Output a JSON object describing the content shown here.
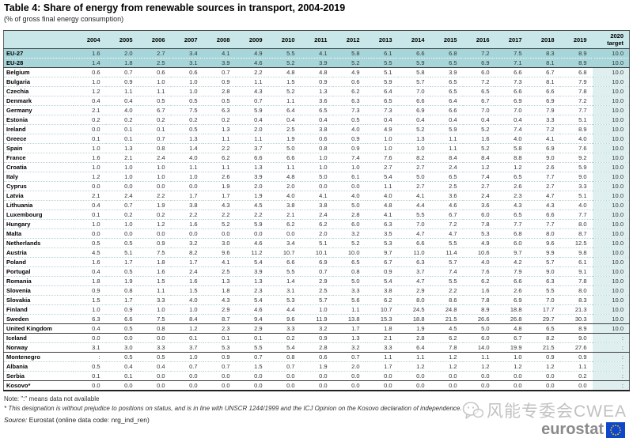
{
  "title": "Table 4: Share of energy from renewable sources in transport, 2004-2019",
  "subtitle": "(% of gross final energy consumption)",
  "chart_data": {
    "type": "table",
    "title": "Table 4: Share of energy from renewable sources in transport, 2004-2019",
    "unit": "% of gross final energy consumption",
    "na_symbol": ":",
    "columns": [
      "2004",
      "2005",
      "2006",
      "2007",
      "2008",
      "2009",
      "2010",
      "2011",
      "2012",
      "2013",
      "2014",
      "2015",
      "2016",
      "2017",
      "2018",
      "2019"
    ],
    "target_header_lines": [
      "2020",
      "target"
    ],
    "rows": [
      {
        "name": "EU-27",
        "group": "eu",
        "values": [
          "1.6",
          "2.0",
          "2.7",
          "3.4",
          "4.1",
          "4.9",
          "5.5",
          "4.1",
          "5.8",
          "6.1",
          "6.6",
          "6.8",
          "7.2",
          "7.5",
          "8.3",
          "8.9"
        ],
        "target": "10.0"
      },
      {
        "name": "EU-28",
        "group": "eu",
        "values": [
          "1.4",
          "1.8",
          "2.5",
          "3.1",
          "3.9",
          "4.6",
          "5.2",
          "3.9",
          "5.2",
          "5.5",
          "5.9",
          "6.5",
          "6.9",
          "7.1",
          "8.1",
          "8.9"
        ],
        "target": "10.0"
      },
      {
        "name": "Belgium",
        "group": "member",
        "values": [
          "0.6",
          "0.7",
          "0.6",
          "0.6",
          "0.7",
          "2.2",
          "4.8",
          "4.8",
          "4.9",
          "5.1",
          "5.8",
          "3.9",
          "6.0",
          "6.6",
          "6.7",
          "6.8"
        ],
        "target": "10.0"
      },
      {
        "name": "Bulgaria",
        "group": "member",
        "values": [
          "1.0",
          "0.9",
          "1.0",
          "1.0",
          "0.9",
          "1.1",
          "1.5",
          "0.9",
          "0.6",
          "5.9",
          "5.7",
          "6.5",
          "7.2",
          "7.3",
          "8.1",
          "7.9"
        ],
        "target": "10.0"
      },
      {
        "name": "Czechia",
        "group": "member",
        "values": [
          "1.2",
          "1.1",
          "1.1",
          "1.0",
          "2.8",
          "4.3",
          "5.2",
          "1.3",
          "6.2",
          "6.4",
          "7.0",
          "6.5",
          "6.5",
          "6.6",
          "6.6",
          "7.8"
        ],
        "target": "10.0"
      },
      {
        "name": "Denmark",
        "group": "member",
        "values": [
          "0.4",
          "0.4",
          "0.5",
          "0.5",
          "0.5",
          "0.7",
          "1.1",
          "3.6",
          "6.3",
          "6.5",
          "6.6",
          "6.4",
          "6.7",
          "6.9",
          "6.9",
          "7.2"
        ],
        "target": "10.0"
      },
      {
        "name": "Germany",
        "group": "member",
        "values": [
          "2.1",
          "4.0",
          "6.7",
          "7.5",
          "6.3",
          "5.9",
          "6.4",
          "6.5",
          "7.3",
          "7.3",
          "6.9",
          "6.6",
          "7.0",
          "7.0",
          "7.9",
          "7.7"
        ],
        "target": "10.0"
      },
      {
        "name": "Estonia",
        "group": "member",
        "values": [
          "0.2",
          "0.2",
          "0.2",
          "0.2",
          "0.2",
          "0.4",
          "0.4",
          "0.4",
          "0.5",
          "0.4",
          "0.4",
          "0.4",
          "0.4",
          "0.4",
          "3.3",
          "5.1"
        ],
        "target": "10.0"
      },
      {
        "name": "Ireland",
        "group": "member",
        "values": [
          "0.0",
          "0.1",
          "0.1",
          "0.5",
          "1.3",
          "2.0",
          "2.5",
          "3.8",
          "4.0",
          "4.9",
          "5.2",
          "5.9",
          "5.2",
          "7.4",
          "7.2",
          "8.9"
        ],
        "target": "10.0"
      },
      {
        "name": "Greece",
        "group": "member",
        "values": [
          "0.1",
          "0.1",
          "0.7",
          "1.3",
          "1.1",
          "1.1",
          "1.9",
          "0.6",
          "0.9",
          "1.0",
          "1.3",
          "1.1",
          "1.6",
          "4.0",
          "4.1",
          "4.0"
        ],
        "target": "10.0"
      },
      {
        "name": "Spain",
        "group": "member",
        "values": [
          "1.0",
          "1.3",
          "0.8",
          "1.4",
          "2.2",
          "3.7",
          "5.0",
          "0.8",
          "0.9",
          "1.0",
          "1.0",
          "1.1",
          "5.2",
          "5.8",
          "6.9",
          "7.6"
        ],
        "target": "10.0"
      },
      {
        "name": "France",
        "group": "member",
        "values": [
          "1.6",
          "2.1",
          "2.4",
          "4.0",
          "6.2",
          "6.6",
          "6.6",
          "1.0",
          "7.4",
          "7.6",
          "8.2",
          "8.4",
          "8.4",
          "8.8",
          "9.0",
          "9.2"
        ],
        "target": "10.0"
      },
      {
        "name": "Croatia",
        "group": "member",
        "values": [
          "1.0",
          "1.0",
          "1.0",
          "1.1",
          "1.1",
          "1.3",
          "1.1",
          "1.0",
          "1.0",
          "2.7",
          "2.7",
          "2.4",
          "1.2",
          "1.2",
          "2.6",
          "5.9"
        ],
        "target": "10.0"
      },
      {
        "name": "Italy",
        "group": "member",
        "values": [
          "1.2",
          "1.0",
          "1.0",
          "1.0",
          "2.6",
          "3.9",
          "4.8",
          "5.0",
          "6.1",
          "5.4",
          "5.0",
          "6.5",
          "7.4",
          "6.5",
          "7.7",
          "9.0"
        ],
        "target": "10.0"
      },
      {
        "name": "Cyprus",
        "group": "member",
        "values": [
          "0.0",
          "0.0",
          "0.0",
          "0.0",
          "1.9",
          "2.0",
          "2.0",
          "0.0",
          "0.0",
          "1.1",
          "2.7",
          "2.5",
          "2.7",
          "2.6",
          "2.7",
          "3.3"
        ],
        "target": "10.0"
      },
      {
        "name": "Latvia",
        "group": "member",
        "values": [
          "2.1",
          "2.4",
          "2.2",
          "1.7",
          "1.7",
          "1.9",
          "4.0",
          "4.1",
          "4.0",
          "4.0",
          "4.1",
          "3.6",
          "2.4",
          "2.3",
          "4.7",
          "5.1"
        ],
        "target": "10.0"
      },
      {
        "name": "Lithuania",
        "group": "member",
        "values": [
          "0.4",
          "0.7",
          "1.9",
          "3.8",
          "4.3",
          "4.5",
          "3.8",
          "3.8",
          "5.0",
          "4.8",
          "4.4",
          "4.6",
          "3.6",
          "4.3",
          "4.3",
          "4.0"
        ],
        "target": "10.0"
      },
      {
        "name": "Luxembourg",
        "group": "member",
        "values": [
          "0.1",
          "0.2",
          "0.2",
          "2.2",
          "2.2",
          "2.2",
          "2.1",
          "2.4",
          "2.8",
          "4.1",
          "5.5",
          "6.7",
          "6.0",
          "6.5",
          "6.6",
          "7.7"
        ],
        "target": "10.0"
      },
      {
        "name": "Hungary",
        "group": "member",
        "values": [
          "1.0",
          "1.0",
          "1.2",
          "1.6",
          "5.2",
          "5.9",
          "6.2",
          "6.2",
          "6.0",
          "6.3",
          "7.0",
          "7.2",
          "7.8",
          "7.7",
          "7.7",
          "8.0"
        ],
        "target": "10.0"
      },
      {
        "name": "Malta",
        "group": "member",
        "values": [
          "0.0",
          "0.0",
          "0.0",
          "0.0",
          "0.0",
          "0.0",
          "0.0",
          "2.0",
          "3.2",
          "3.5",
          "4.7",
          "4.7",
          "5.3",
          "6.8",
          "8.0",
          "8.7"
        ],
        "target": "10.0"
      },
      {
        "name": "Netherlands",
        "group": "member",
        "values": [
          "0.5",
          "0.5",
          "0.9",
          "3.2",
          "3.0",
          "4.6",
          "3.4",
          "5.1",
          "5.2",
          "5.3",
          "6.6",
          "5.5",
          "4.9",
          "6.0",
          "9.6",
          "12.5"
        ],
        "target": "10.0"
      },
      {
        "name": "Austria",
        "group": "member",
        "values": [
          "4.5",
          "5.1",
          "7.5",
          "8.2",
          "9.6",
          "11.2",
          "10.7",
          "10.1",
          "10.0",
          "9.7",
          "11.0",
          "11.4",
          "10.6",
          "9.7",
          "9.9",
          "9.8"
        ],
        "target": "10.0"
      },
      {
        "name": "Poland",
        "group": "member",
        "values": [
          "1.6",
          "1.7",
          "1.8",
          "1.7",
          "4.1",
          "5.4",
          "6.6",
          "6.9",
          "6.5",
          "6.7",
          "6.3",
          "5.7",
          "4.0",
          "4.2",
          "5.7",
          "6.1"
        ],
        "target": "10.0"
      },
      {
        "name": "Portugal",
        "group": "member",
        "values": [
          "0.4",
          "0.5",
          "1.6",
          "2.4",
          "2.5",
          "3.9",
          "5.5",
          "0.7",
          "0.8",
          "0.9",
          "3.7",
          "7.4",
          "7.6",
          "7.9",
          "9.0",
          "9.1"
        ],
        "target": "10.0"
      },
      {
        "name": "Romania",
        "group": "member",
        "values": [
          "1.8",
          "1.9",
          "1.5",
          "1.6",
          "1.3",
          "1.3",
          "1.4",
          "2.9",
          "5.0",
          "5.4",
          "4.7",
          "5.5",
          "6.2",
          "6.6",
          "6.3",
          "7.8"
        ],
        "target": "10.0"
      },
      {
        "name": "Slovenia",
        "group": "member",
        "values": [
          "0.9",
          "0.8",
          "1.1",
          "1.5",
          "1.8",
          "2.3",
          "3.1",
          "2.5",
          "3.3",
          "3.8",
          "2.9",
          "2.2",
          "1.6",
          "2.6",
          "5.5",
          "8.0"
        ],
        "target": "10.0"
      },
      {
        "name": "Slovakia",
        "group": "member",
        "values": [
          "1.5",
          "1.7",
          "3.3",
          "4.0",
          "4.3",
          "5.4",
          "5.3",
          "5.7",
          "5.6",
          "6.2",
          "8.0",
          "8.6",
          "7.8",
          "6.9",
          "7.0",
          "8.3"
        ],
        "target": "10.0"
      },
      {
        "name": "Finland",
        "group": "member",
        "values": [
          "1.0",
          "0.9",
          "1.0",
          "1.0",
          "2.9",
          "4.6",
          "4.4",
          "1.0",
          "1.1",
          "10.7",
          "24.5",
          "24.8",
          "8.9",
          "18.8",
          "17.7",
          "21.3"
        ],
        "target": "10.0"
      },
      {
        "name": "Sweden",
        "group": "member",
        "values": [
          "6.3",
          "6.6",
          "7.5",
          "8.4",
          "8.7",
          "9.4",
          "9.6",
          "11.9",
          "13.8",
          "15.3",
          "18.8",
          "21.5",
          "26.6",
          "26.8",
          "29.7",
          "30.3"
        ],
        "target": "10.0"
      },
      {
        "name": "United Kingdom",
        "group": "uk",
        "values": [
          "0.4",
          "0.5",
          "0.8",
          "1.2",
          "2.3",
          "2.9",
          "3.3",
          "3.2",
          "1.7",
          "1.8",
          "1.9",
          "4.5",
          "5.0",
          "4.8",
          "6.5",
          "8.9"
        ],
        "target": "10.0"
      },
      {
        "name": "Iceland",
        "group": "efta",
        "values": [
          "0.0",
          "0.0",
          "0.0",
          "0.1",
          "0.1",
          "0.1",
          "0.2",
          "0.9",
          "1.3",
          "2.1",
          "2.8",
          "6.2",
          "6.0",
          "6.7",
          "8.2",
          "9.0"
        ],
        "target": ":"
      },
      {
        "name": "Norway",
        "group": "efta",
        "values": [
          "3.1",
          "3.0",
          "3.3",
          "3.7",
          "5.3",
          "5.5",
          "5.4",
          "2.8",
          "3.2",
          "3.3",
          "6.4",
          "7.8",
          "14.0",
          "19.9",
          "21.5",
          "27.6"
        ],
        "target": ":"
      },
      {
        "name": "Montenegro",
        "group": "candidate",
        "values": [
          ":",
          "0.5",
          "0.5",
          "1.0",
          "0.9",
          "0.7",
          "0.8",
          "0.6",
          "0.7",
          "1.1",
          "1.1",
          "1.2",
          "1.1",
          "1.0",
          "0.9",
          "0.9"
        ],
        "target": ":"
      },
      {
        "name": "Albania",
        "group": "candidate",
        "values": [
          "0.5",
          "0.4",
          "0.4",
          "0.7",
          "0.7",
          "1.5",
          "0.7",
          "1.9",
          "2.0",
          "1.7",
          "1.2",
          "1.2",
          "1.2",
          "1.2",
          "1.2",
          "1.1"
        ],
        "target": ":"
      },
      {
        "name": "Serbia",
        "group": "candidate",
        "values": [
          "0.1",
          "0.1",
          "0.0",
          "0.0",
          "0.0",
          "0.0",
          "0.0",
          "0.0",
          "0.0",
          "0.0",
          "0.0",
          "0.0",
          "0.0",
          "0.0",
          "0.0",
          "0.2"
        ],
        "target": ":"
      },
      {
        "name": "Kosovo*",
        "group": "kosovo",
        "values": [
          "0.0",
          "0.0",
          "0.0",
          "0.0",
          "0.0",
          "0.0",
          "0.0",
          "0.0",
          "0.0",
          "0.0",
          "0.0",
          "0.0",
          "0.0",
          "0.0",
          "0.0",
          "0.0"
        ],
        "target": ":"
      }
    ]
  },
  "footer": {
    "note": "Note: \":\" means data not available",
    "footnote": "* This designation is without prejudice to positions on status, and is in line with UNSCR 1244/1999 and the ICJ Opinion on the Kosovo declaration of independence.",
    "source_label": "Source:",
    "source_text": " Eurostat (online data code: nrg_ind_ren)"
  },
  "watermark": {
    "text": "风能专委会CWEA",
    "icon": "wechat-icon"
  },
  "logo": {
    "text": "eurostat"
  },
  "colors": {
    "header_bg": "#c9e6e8",
    "eu_row_bg": "#a6d6da",
    "target_col_bg": "#dfeff0",
    "divider": "#b4d4d7",
    "border": "#666666",
    "eu_blue": "#0e47cb",
    "star_yellow": "#ffcc00"
  }
}
